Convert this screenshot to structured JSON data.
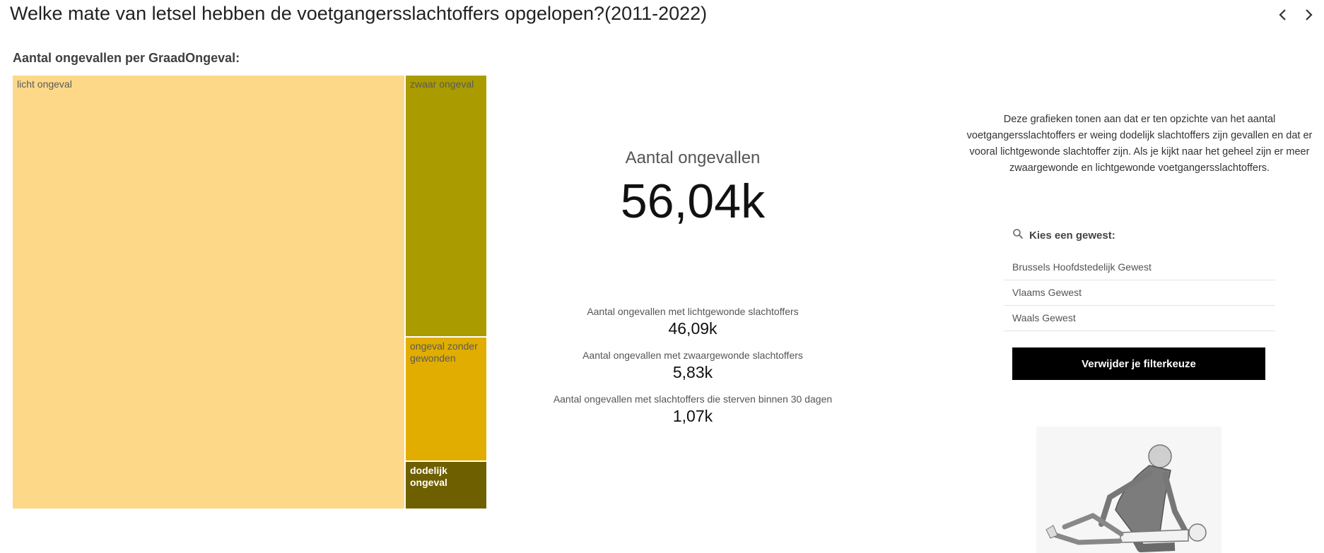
{
  "page": {
    "title": "Welke mate van letsel hebben de voetgangersslachtoffers opgelopen?(2011-2022)"
  },
  "nav": {
    "prev_icon": "chevron-left-icon",
    "next_icon": "chevron-right-icon"
  },
  "treemap": {
    "title": "Aantal ongevallen per GraadOngeval:",
    "cells": [
      {
        "label": "licht ongeval",
        "color": "#fdd888"
      },
      {
        "label": "zwaar ongeval",
        "color": "#aa9b00"
      },
      {
        "label": "ongeval zonder gewonden",
        "color": "#e0ad00"
      },
      {
        "label": "dodelijk ongeval",
        "color": "#6e5f00"
      }
    ]
  },
  "kpi": {
    "main_label": "Aantal ongevallen",
    "main_value": "56,04k",
    "items": [
      {
        "label": "Aantal ongevallen met lichtgewonde slachtoffers",
        "value": "46,09k"
      },
      {
        "label": "Aantal ongevallen met zwaargewonde slachtoffers",
        "value": "5,83k"
      },
      {
        "label": "Aantal ongevallen met slachtoffers die sterven binnen 30 dagen",
        "value": "1,07k"
      }
    ]
  },
  "description": "Deze grafieken tonen aan dat er ten opzichte van het aantal voetgangersslachtoffers er weing dodelijk slachtoffers zijn gevallen en dat er vooral lichtgewonde slachtoffer zijn. Als je kijkt naar het geheel zijn er meer zwaargewonde en lichtgewonde voetgangersslachtoffers.",
  "filter": {
    "search_icon": "search-icon",
    "label": "Kies een gewest:",
    "options": [
      "Brussels Hoofdstedelijk Gewest",
      "Vlaams Gewest",
      "Waals Gewest"
    ],
    "clear_label": "Verwijder je filterkeuze"
  },
  "illustration": {
    "name": "first-aid-illustration"
  }
}
